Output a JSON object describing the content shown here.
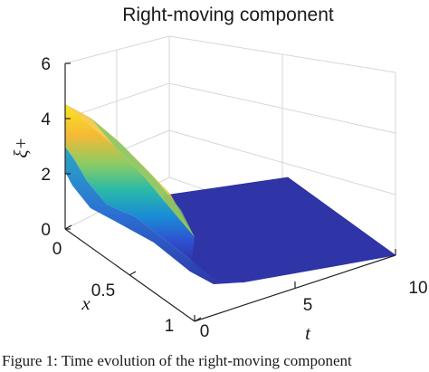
{
  "chart_data": {
    "type": "surface",
    "title": "Right-moving component",
    "xlabel": "t",
    "ylabel": "x",
    "zlabel": "ξ+",
    "x_ticks": [
      "0",
      "5",
      "10"
    ],
    "y_ticks": [
      "0",
      "0.5",
      "1"
    ],
    "z_ticks": [
      "0",
      "2",
      "4",
      "6"
    ],
    "xlim": [
      0,
      10
    ],
    "ylim": [
      0,
      1
    ],
    "zlim": [
      0,
      6
    ],
    "grid": true,
    "colormap": "parula",
    "surface_profile": {
      "description_points": [
        {
          "t": 0,
          "x": 0,
          "z": 4.7
        },
        {
          "t": 0,
          "x": 1,
          "z": 3.3
        },
        {
          "t": 1,
          "x": 0,
          "z": 3.0
        },
        {
          "t": 1,
          "x": 1,
          "z": 1.9
        },
        {
          "t": 2,
          "x": 0,
          "z": 1.0
        },
        {
          "t": 2,
          "x": 1,
          "z": 0.4
        },
        {
          "t": 3,
          "x": 0,
          "z": 0.05
        },
        {
          "t": 3,
          "x": 1,
          "z": 0.02
        },
        {
          "t": 10,
          "x": 0,
          "z": 0.0
        },
        {
          "t": 10,
          "x": 1,
          "z": 0.0
        }
      ]
    }
  },
  "caption": "Figure 1:  Time evolution of the right-moving component"
}
